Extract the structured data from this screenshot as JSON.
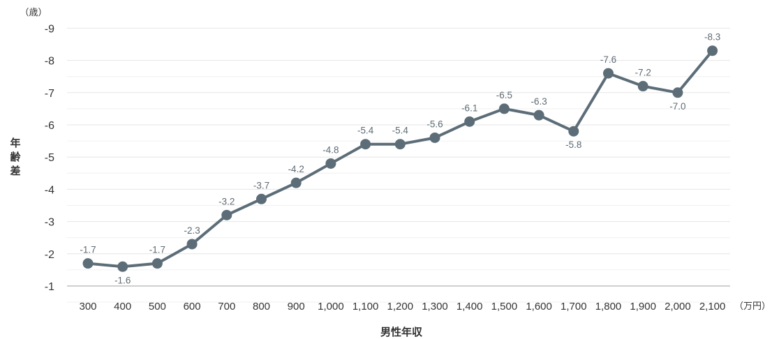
{
  "chart_data": {
    "type": "line",
    "title": "",
    "xlabel": "男性年収",
    "x_unit": "（万円）",
    "ylabel": "年齢差",
    "y_unit": "（歳）",
    "categories": [
      "300",
      "400",
      "500",
      "600",
      "700",
      "800",
      "900",
      "1,000",
      "1,100",
      "1,200",
      "1,300",
      "1,400",
      "1,500",
      "1,600",
      "1,700",
      "1,800",
      "1,900",
      "2,000",
      "2,100"
    ],
    "series": [
      {
        "values": [
          -1.7,
          -1.6,
          -1.7,
          -2.3,
          -3.2,
          -3.7,
          -4.2,
          -4.8,
          -5.4,
          -5.4,
          -5.6,
          -6.1,
          -6.5,
          -6.3,
          -5.8,
          -7.6,
          -7.2,
          -7.0,
          -8.3
        ],
        "labels": [
          "-1.7",
          "-1.6",
          "-1.7",
          "-2.3",
          "-3.2",
          "-3.7",
          "-4.2",
          "-4.8",
          "-5.4",
          "-5.4",
          "-5.6",
          "-6.1",
          "-6.5",
          "-6.3",
          "-5.8",
          "-7.6",
          "-7.2",
          "-7.0",
          "-8.3"
        ],
        "color": "#5c6d78"
      }
    ],
    "y_ticks": [
      "-9",
      "-8",
      "-7",
      "-6",
      "-5",
      "-4",
      "-3",
      "-2",
      "-1"
    ],
    "ylim": [
      -1,
      -9
    ],
    "y_inverted": true,
    "grid": true,
    "legend": "none"
  }
}
